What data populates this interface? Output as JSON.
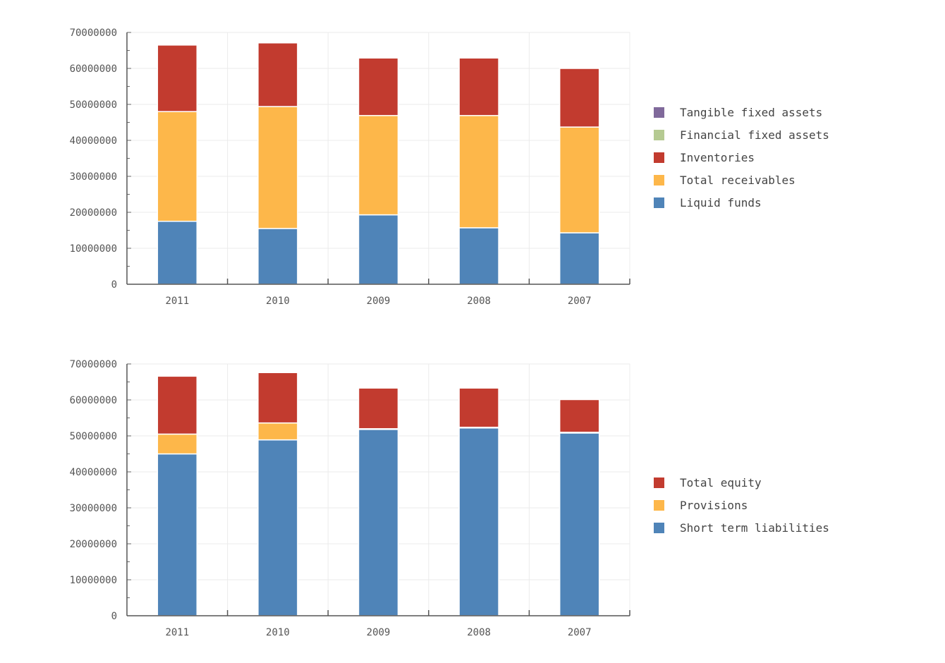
{
  "chart_data": [
    {
      "type": "bar",
      "stacked": true,
      "title": "",
      "xlabel": "",
      "ylabel": "",
      "categories": [
        "2011",
        "2010",
        "2009",
        "2008",
        "2007"
      ],
      "ylim": [
        0,
        70000000
      ],
      "yticks": [
        "0",
        "10000000",
        "20000000",
        "30000000",
        "40000000",
        "50000000",
        "60000000",
        "70000000"
      ],
      "grid": true,
      "legend_position": "right",
      "legend": [
        {
          "name": "Tangible fixed assets",
          "color": "#80699B"
        },
        {
          "name": "Financial fixed assets",
          "color": "#B5CA92"
        },
        {
          "name": "Inventories",
          "color": "#C23B2F"
        },
        {
          "name": "Total receivables",
          "color": "#FDB74A"
        },
        {
          "name": "Liquid funds",
          "color": "#4F84B8"
        }
      ],
      "series": [
        {
          "name": "Liquid funds",
          "color": "#4F84B8",
          "values": [
            17500000,
            15500000,
            19300000,
            15700000,
            14300000
          ]
        },
        {
          "name": "Total receivables",
          "color": "#FDB74A",
          "values": [
            30500000,
            33900000,
            27600000,
            31200000,
            29400000
          ]
        },
        {
          "name": "Inventories",
          "color": "#C23B2F",
          "values": [
            18500000,
            17700000,
            16000000,
            16000000,
            16300000
          ]
        },
        {
          "name": "Financial fixed assets",
          "color": "#B5CA92",
          "values": [
            0,
            0,
            0,
            0,
            0
          ]
        },
        {
          "name": "Tangible fixed assets",
          "color": "#80699B",
          "values": [
            0,
            0,
            0,
            0,
            0
          ]
        }
      ]
    },
    {
      "type": "bar",
      "stacked": true,
      "title": "",
      "xlabel": "",
      "ylabel": "",
      "categories": [
        "2011",
        "2010",
        "2009",
        "2008",
        "2007"
      ],
      "ylim": [
        0,
        70000000
      ],
      "yticks": [
        "0",
        "10000000",
        "20000000",
        "30000000",
        "40000000",
        "50000000",
        "60000000",
        "70000000"
      ],
      "grid": true,
      "legend_position": "right",
      "legend": [
        {
          "name": "Total equity",
          "color": "#C23B2F"
        },
        {
          "name": "Provisions",
          "color": "#FDB74A"
        },
        {
          "name": "Short term liabilities",
          "color": "#4F84B8"
        }
      ],
      "series": [
        {
          "name": "Short term liabilities",
          "color": "#4F84B8",
          "values": [
            45000000,
            48900000,
            51800000,
            52200000,
            50800000
          ]
        },
        {
          "name": "Provisions",
          "color": "#FDB74A",
          "values": [
            5500000,
            4700000,
            200000,
            200000,
            200000
          ]
        },
        {
          "name": "Total equity",
          "color": "#C23B2F",
          "values": [
            16100000,
            14000000,
            11300000,
            10900000,
            9100000
          ]
        }
      ]
    }
  ]
}
